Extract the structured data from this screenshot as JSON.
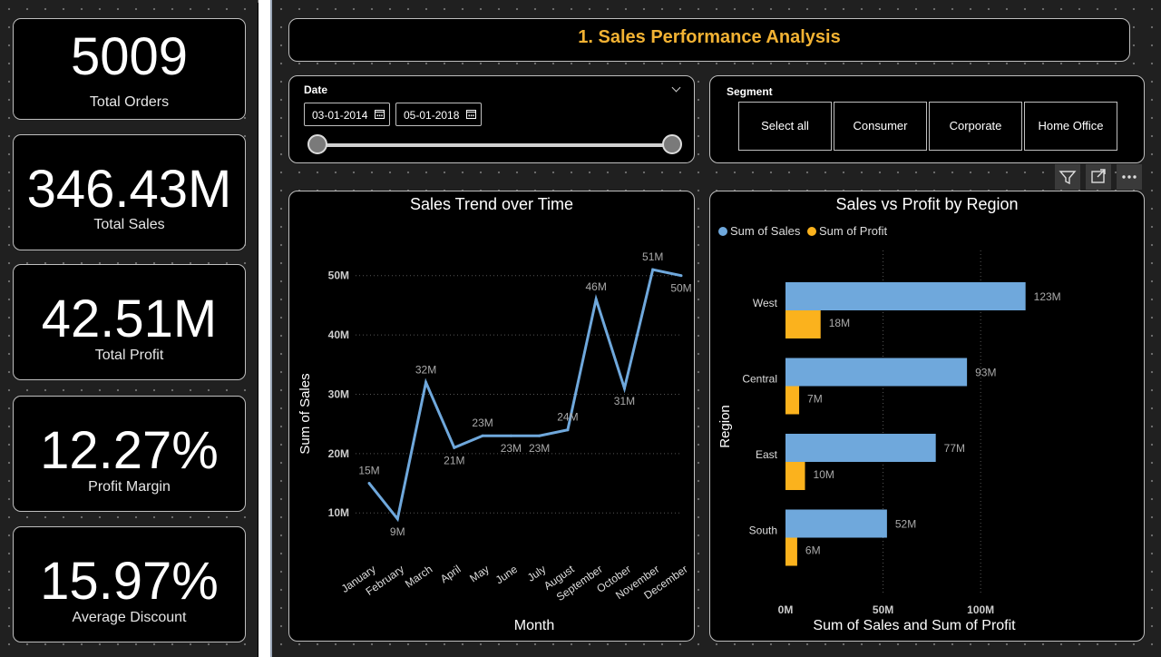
{
  "kpis": [
    {
      "value": "5009",
      "label": "Total Orders"
    },
    {
      "value": "346.43M",
      "label": "Total Sales"
    },
    {
      "value": "42.51M",
      "label": "Total Profit"
    },
    {
      "value": "12.27%",
      "label": "Profit Margin"
    },
    {
      "value": "15.97%",
      "label": "Average Discount"
    }
  ],
  "page_title": "1. Sales Performance Analysis",
  "date_slicer": {
    "label": "Date",
    "start": "03-01-2014",
    "end": "05-01-2018"
  },
  "segment_slicer": {
    "label": "Segment",
    "options": [
      "Select all",
      "Consumer",
      "Corporate",
      "Home Office"
    ]
  },
  "toolbar": {
    "icons": [
      "filter-icon",
      "focus-mode-icon",
      "more-options-icon"
    ]
  },
  "colors": {
    "title": "#f2b233",
    "sales": "#6fa8dc",
    "profit": "#fbb21d",
    "line": "#6fa8dc"
  },
  "chart_data": [
    {
      "type": "line",
      "title": "Sales Trend over Time",
      "xlabel": "Month",
      "ylabel": "Sum of Sales",
      "categories": [
        "January",
        "February",
        "March",
        "April",
        "May",
        "June",
        "July",
        "August",
        "September",
        "October",
        "November",
        "December"
      ],
      "values": [
        15,
        9,
        32,
        21,
        23,
        23,
        23,
        24,
        46,
        31,
        51,
        50
      ],
      "data_labels": [
        "15M",
        "9M",
        "32M",
        "21M",
        "23M",
        "23M",
        "23M",
        "24M",
        "46M",
        "31M",
        "51M",
        "50M"
      ],
      "y_ticks": [
        {
          "v": 10,
          "label": "10M"
        },
        {
          "v": 20,
          "label": "20M"
        },
        {
          "v": 30,
          "label": "30M"
        },
        {
          "v": 40,
          "label": "40M"
        },
        {
          "v": 50,
          "label": "50M"
        }
      ],
      "ylim": [
        3,
        55
      ],
      "grid": true
    },
    {
      "type": "bar",
      "orientation": "horizontal",
      "title": "Sales vs Profit by Region",
      "xlabel": "Sum of Sales and Sum of Profit",
      "ylabel": "Region",
      "categories": [
        "West",
        "Central",
        "East",
        "South"
      ],
      "series": [
        {
          "name": "Sum of Sales",
          "values": [
            123,
            93,
            77,
            52
          ],
          "labels": [
            "123M",
            "93M",
            "77M",
            "52M"
          ]
        },
        {
          "name": "Sum of Profit",
          "values": [
            18,
            7,
            10,
            6
          ],
          "labels": [
            "18M",
            "7M",
            "10M",
            "6M"
          ]
        }
      ],
      "x_ticks": [
        {
          "v": 0,
          "label": "0M"
        },
        {
          "v": 50,
          "label": "50M"
        },
        {
          "v": 100,
          "label": "100M"
        }
      ],
      "xlim": [
        0,
        145
      ],
      "legend": "top-left",
      "grid": true
    }
  ]
}
